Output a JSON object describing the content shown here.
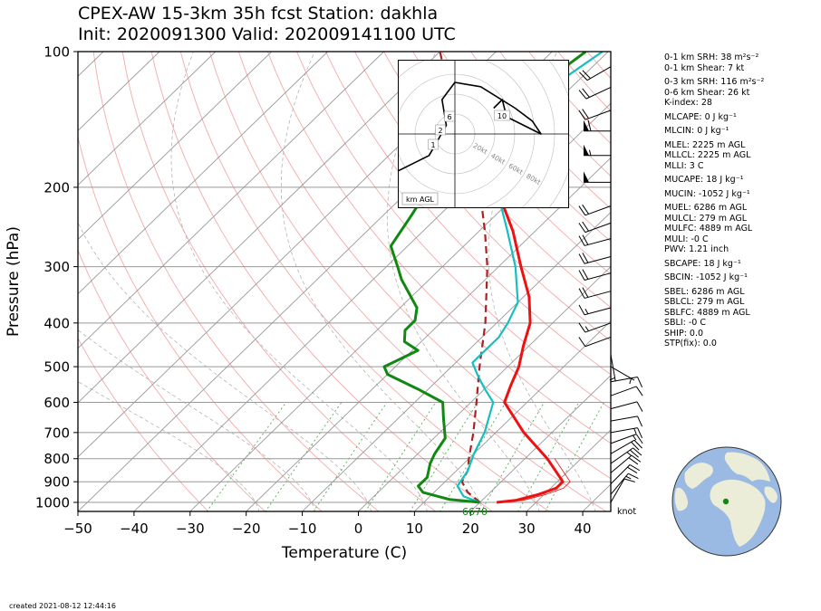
{
  "header": {
    "title_line1": "CPEX-AW 15-3km  35h fcst  Station: dakhla",
    "title_line2": "Init: 2020091300  Valid: 202009141100 UTC"
  },
  "axes": {
    "ylabel": "Pressure (hPa)",
    "xlabel": "Temperature (C)",
    "y_ticks": [
      "100",
      "200",
      "300",
      "400",
      "500",
      "600",
      "700",
      "800",
      "900",
      "1000"
    ],
    "x_ticks": [
      "−50",
      "−40",
      "−30",
      "−20",
      "−10",
      "0",
      "10",
      "20",
      "30",
      "40"
    ]
  },
  "hodograph": {
    "ring_labels": [
      "20kt",
      "40kt",
      "60kt",
      "80kt"
    ],
    "height_labels": [
      "1",
      "2",
      "6",
      "10"
    ],
    "legend": "km AGL"
  },
  "indices": [
    {
      "label": "0-1 km SRH: 38 m²s⁻²"
    },
    {
      "label": "0-1 km Shear: 7 kt"
    },
    {
      "label": "0-3 km SRH: 116 m²s⁻²",
      "gap": true
    },
    {
      "label": "0-6 km Shear: 26 kt"
    },
    {
      "label": "K-index: 28"
    },
    {
      "label": "MLCAPE: 0 J kg⁻¹",
      "gap": true
    },
    {
      "label": "MLCIN: 0 J kg⁻¹",
      "gap": true
    },
    {
      "label": "MLEL: 2225 m AGL",
      "gap": true
    },
    {
      "label": "MLLCL: 2225 m AGL"
    },
    {
      "label": "MLLI: 3 C"
    },
    {
      "label": "MUCAPE: 18 J kg⁻¹",
      "gap": true
    },
    {
      "label": "MUCIN: -1052 J kg⁻¹",
      "gap": true
    },
    {
      "label": "MUEL: 6286 m AGL",
      "gap": true
    },
    {
      "label": "MULCL: 279 m AGL"
    },
    {
      "label": "MULFC: 4889 m AGL"
    },
    {
      "label": "MULI: -0 C"
    },
    {
      "label": "PWV: 1.21 inch"
    },
    {
      "label": "SBCAPE: 18 J kg⁻¹",
      "gap": true
    },
    {
      "label": "SBCIN: -1052 J kg⁻¹",
      "gap": true
    },
    {
      "label": "SBEL: 6286 m AGL",
      "gap": true
    },
    {
      "label": "SBLCL: 279 m AGL"
    },
    {
      "label": "SBLFC: 4889 m AGL"
    },
    {
      "label": "SBLI: -0 C"
    },
    {
      "label": "SHIP: 0.0"
    },
    {
      "label": "STP(fix): 0.0"
    }
  ],
  "wind_unit": "knot",
  "surface_label": "6670",
  "created": "created 2021-08-12 12:44:16",
  "colors": {
    "temperature": "#ee1111",
    "dewpoint": "#118811",
    "wetbulb": "#17bebf",
    "parcel": "#aa2222",
    "dry_adiabat": "#f4a9a9",
    "mixing_ratio": "#55aa55",
    "isotherm": "#999999",
    "globe_ocean": "#9ab9e3",
    "globe_land": "#ecedd9",
    "station": "#118811"
  },
  "chart_data": {
    "type": "line",
    "title": "CPEX-AW 15-3km  35h fcst  Station: dakhla",
    "xlabel": "Temperature (C)",
    "ylabel": "Pressure (hPa)",
    "xlim": [
      -50,
      45
    ],
    "ylim": [
      1050,
      100
    ],
    "y_scale": "log",
    "skew": true,
    "grid": true,
    "series": [
      {
        "key": "temperature",
        "points": [
          [
            1000,
            23
          ],
          [
            990,
            26
          ],
          [
            960,
            29
          ],
          [
            930,
            31
          ],
          [
            900,
            31
          ],
          [
            870,
            29
          ],
          [
            800,
            24
          ],
          [
            700,
            15
          ],
          [
            600,
            6
          ],
          [
            550,
            4
          ],
          [
            500,
            2
          ],
          [
            450,
            -1
          ],
          [
            400,
            -4
          ],
          [
            350,
            -9
          ],
          [
            300,
            -16
          ],
          [
            250,
            -24
          ],
          [
            200,
            -35
          ],
          [
            160,
            -44
          ]
        ]
      },
      {
        "key": "dewpoint",
        "points": [
          [
            1000,
            20
          ],
          [
            985,
            14
          ],
          [
            950,
            8
          ],
          [
            920,
            6
          ],
          [
            880,
            6
          ],
          [
            820,
            4
          ],
          [
            780,
            3
          ],
          [
            720,
            2
          ],
          [
            650,
            -2
          ],
          [
            600,
            -5
          ],
          [
            560,
            -12
          ],
          [
            520,
            -20
          ],
          [
            500,
            -22
          ],
          [
            460,
            -19
          ],
          [
            440,
            -23
          ],
          [
            415,
            -25
          ],
          [
            395,
            -25
          ],
          [
            370,
            -27
          ],
          [
            320,
            -35
          ],
          [
            300,
            -38
          ],
          [
            270,
            -43
          ],
          [
            230,
            -45
          ],
          [
            200,
            -47
          ],
          [
            165,
            -53
          ],
          [
            145,
            -49
          ],
          [
            120,
            -46
          ],
          [
            100,
            -44
          ]
        ]
      },
      {
        "key": "wetbulb",
        "points": [
          [
            1000,
            20
          ],
          [
            970,
            16
          ],
          [
            920,
            13
          ],
          [
            850,
            12
          ],
          [
            780,
            10
          ],
          [
            700,
            8
          ],
          [
            600,
            4
          ],
          [
            560,
            0
          ],
          [
            520,
            -4
          ],
          [
            490,
            -7
          ],
          [
            460,
            -7
          ],
          [
            430,
            -7
          ],
          [
            400,
            -8
          ],
          [
            360,
            -10
          ],
          [
            300,
            -17
          ],
          [
            250,
            -25
          ],
          [
            200,
            -35
          ],
          [
            160,
            -44
          ],
          [
            145,
            -45
          ],
          [
            130,
            -43
          ],
          [
            115,
            -43
          ],
          [
            100,
            -41
          ]
        ]
      },
      {
        "key": "parcel",
        "points": [
          [
            1000,
            20
          ],
          [
            950,
            16
          ],
          [
            900,
            13
          ],
          [
            850,
            12
          ],
          [
            800,
            10
          ],
          [
            700,
            6
          ],
          [
            600,
            1
          ],
          [
            500,
            -5
          ],
          [
            400,
            -12
          ],
          [
            300,
            -22
          ],
          [
            250,
            -29
          ],
          [
            200,
            -38
          ],
          [
            150,
            -51
          ],
          [
            120,
            -62
          ],
          [
            100,
            -70
          ]
        ]
      }
    ],
    "wind_barbs": [
      {
        "p": 1000,
        "dir": 30,
        "kt": 8
      },
      {
        "p": 960,
        "dir": 40,
        "kt": 14
      },
      {
        "p": 910,
        "dir": 45,
        "kt": 18
      },
      {
        "p": 860,
        "dir": 50,
        "kt": 22
      },
      {
        "p": 820,
        "dir": 55,
        "kt": 26
      },
      {
        "p": 780,
        "dir": 60,
        "kt": 20
      },
      {
        "p": 740,
        "dir": 70,
        "kt": 16
      },
      {
        "p": 700,
        "dir": 80,
        "kt": 14
      },
      {
        "p": 660,
        "dir": 80,
        "kt": 12
      },
      {
        "p": 620,
        "dir": 75,
        "kt": 12
      },
      {
        "p": 580,
        "dir": 70,
        "kt": 10
      },
      {
        "p": 540,
        "dir": 80,
        "kt": 10
      },
      {
        "p": 500,
        "dir": 120,
        "kt": 6
      },
      {
        "p": 470,
        "dir": 170,
        "kt": 4
      },
      {
        "p": 430,
        "dir": 250,
        "kt": 8
      },
      {
        "p": 400,
        "dir": 250,
        "kt": 14
      },
      {
        "p": 370,
        "dir": 255,
        "kt": 16
      },
      {
        "p": 340,
        "dir": 255,
        "kt": 18
      },
      {
        "p": 310,
        "dir": 255,
        "kt": 18
      },
      {
        "p": 285,
        "dir": 255,
        "kt": 20
      },
      {
        "p": 260,
        "dir": 255,
        "kt": 18
      },
      {
        "p": 240,
        "dir": 250,
        "kt": 20
      },
      {
        "p": 220,
        "dir": 250,
        "kt": 22
      },
      {
        "p": 195,
        "dir": 270,
        "kt": 50
      },
      {
        "p": 170,
        "dir": 270,
        "kt": 55
      },
      {
        "p": 150,
        "dir": 270,
        "kt": 58
      },
      {
        "p": 135,
        "dir": 250,
        "kt": 22
      },
      {
        "p": 120,
        "dir": 245,
        "kt": 20
      },
      {
        "p": 108,
        "dir": 240,
        "kt": 18
      }
    ],
    "hodograph_points": [
      [
        -0.8,
        -0.5
      ],
      [
        -0.3,
        -0.25
      ],
      [
        -0.1,
        0.1
      ],
      [
        -0.15,
        0.4
      ],
      [
        0.0,
        0.6
      ],
      [
        0.3,
        0.55
      ],
      [
        0.7,
        0.3
      ],
      [
        0.9,
        0.15
      ],
      [
        1.0,
        0.0
      ],
      [
        0.8,
        0.1
      ],
      [
        0.6,
        0.2
      ],
      [
        0.55,
        0.4
      ],
      [
        0.45,
        0.3
      ]
    ]
  }
}
